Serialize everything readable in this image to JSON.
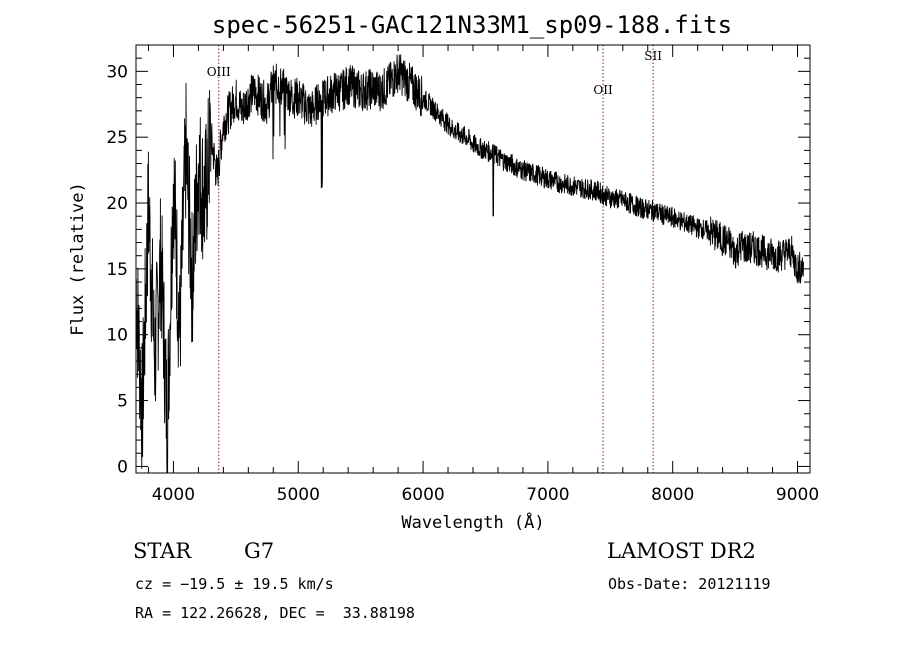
{
  "chart_data": {
    "type": "line",
    "title": "spec-56251-GAC121N33M1_sp09-188.fits",
    "xlabel": "Wavelength (Å)",
    "ylabel": "Flux (relative)",
    "xlim": [
      3700,
      9100
    ],
    "ylim": [
      -0.5,
      32
    ],
    "xticks": [
      4000,
      5000,
      6000,
      7000,
      8000,
      9000
    ],
    "yticks": [
      0,
      5,
      10,
      15,
      20,
      25,
      30
    ],
    "grid": false,
    "series": [
      {
        "color": "#000000",
        "x": [
          3700,
          3750,
          3800,
          3850,
          3900,
          3950,
          4000,
          4050,
          4100,
          4150,
          4200,
          4250,
          4300,
          4350,
          4400,
          4450,
          4500,
          4550,
          4600,
          4650,
          4700,
          4750,
          4800,
          4850,
          4900,
          4950,
          5000,
          5050,
          5100,
          5150,
          5200,
          5250,
          5300,
          5350,
          5400,
          5450,
          5500,
          5550,
          5600,
          5650,
          5700,
          5750,
          5800,
          5850,
          5900,
          5950,
          6000,
          6050,
          6100,
          6150,
          6200,
          6250,
          6300,
          6350,
          6400,
          6450,
          6500,
          6550,
          6600,
          6650,
          6700,
          6750,
          6800,
          6850,
          6900,
          6950,
          7000,
          7050,
          7100,
          7150,
          7200,
          7250,
          7300,
          7350,
          7400,
          7450,
          7500,
          7550,
          7600,
          7650,
          7700,
          7750,
          7800,
          7850,
          7900,
          7950,
          8000,
          8050,
          8100,
          8150,
          8200,
          8250,
          8300,
          8350,
          8400,
          8450,
          8500,
          8550,
          8600,
          8650,
          8700,
          8750,
          8800,
          8850,
          8900,
          8950,
          9000,
          9050
        ],
        "y": [
          14,
          4,
          20,
          8,
          16,
          3,
          22,
          10,
          24,
          14,
          23,
          20,
          25,
          22,
          26,
          27,
          28,
          27,
          28,
          28.5,
          28,
          27.5,
          29,
          29,
          28.5,
          28,
          28,
          27.5,
          27,
          27.5,
          28,
          28.2,
          28.5,
          28.5,
          29,
          28.8,
          28.5,
          28.6,
          28.7,
          28.5,
          28.8,
          29.3,
          30,
          29.5,
          29,
          28.5,
          28,
          27.5,
          27,
          26.5,
          26,
          25.5,
          25.2,
          25,
          24.5,
          24.2,
          24,
          23.8,
          23.5,
          23.2,
          23,
          22.7,
          22.5,
          22.3,
          22.2,
          22,
          21.8,
          21.7,
          21.5,
          21.4,
          21.3,
          21.2,
          21.1,
          21,
          20.9,
          20.6,
          20.4,
          20.3,
          20.2,
          20,
          19.8,
          19.6,
          19.5,
          19.4,
          19.2,
          19,
          18.9,
          18.7,
          18.5,
          18.3,
          18.1,
          18,
          17.8,
          17.5,
          17.2,
          17,
          16.2,
          16.8,
          16.5,
          16.6,
          16.4,
          16.2,
          16.1,
          16,
          16.2,
          16.3,
          15,
          15.2
        ]
      }
    ],
    "annotations": [
      {
        "label": "OIII",
        "x": 4363
      },
      {
        "label": "OII",
        "x": 7442
      },
      {
        "label": "SII",
        "x": 7843
      }
    ],
    "vline_color": "#8b2323"
  },
  "info": {
    "object_type": "STAR",
    "subclass": "G7",
    "survey": "LAMOST DR2",
    "redshift": "cz = −19.5 ± 19.5 km/s",
    "obs_date": "Obs-Date: 20121119",
    "coords": "RA = 122.26628, DEC =  33.88198"
  }
}
